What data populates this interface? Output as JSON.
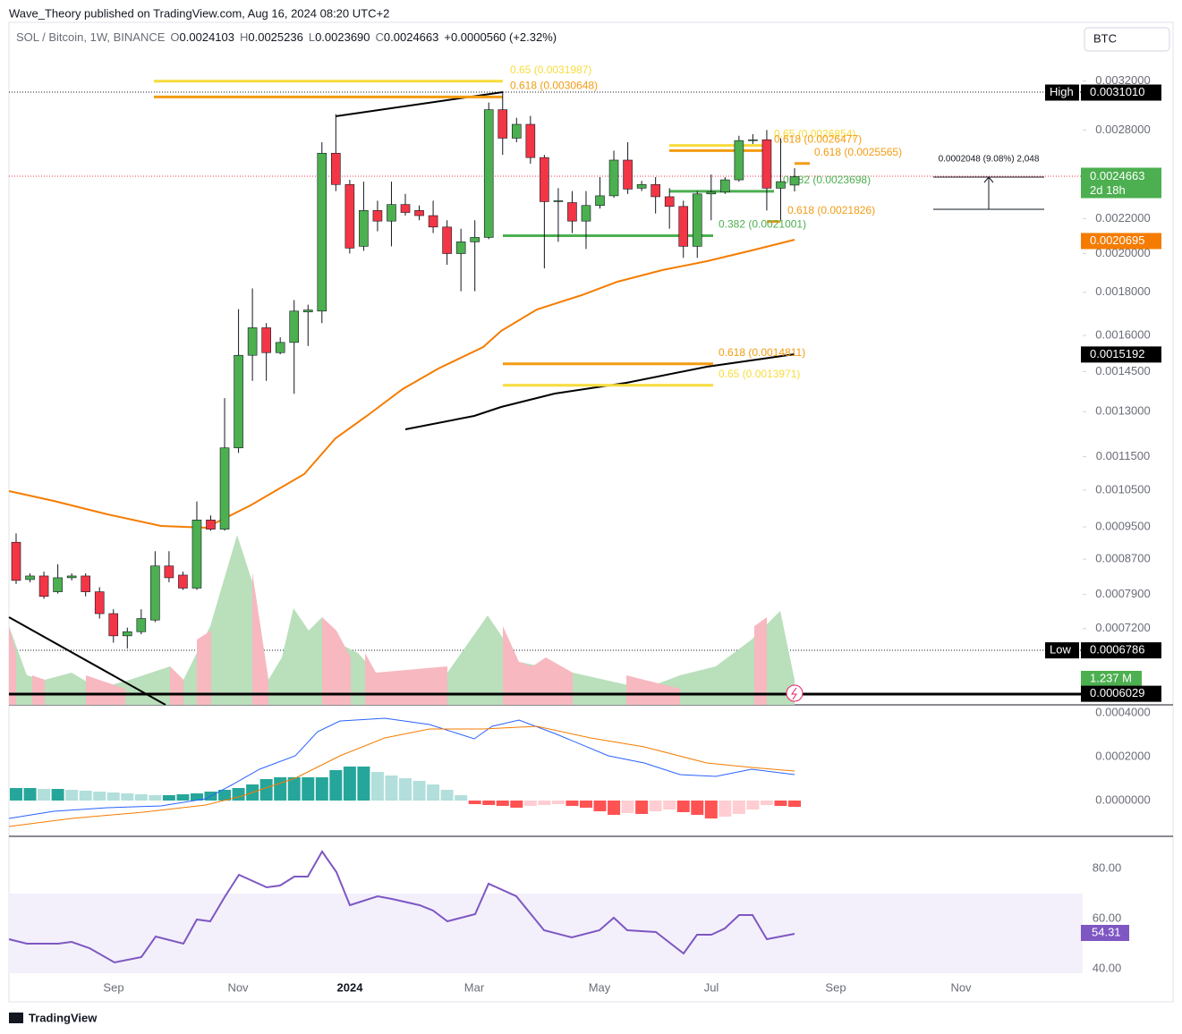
{
  "header": {
    "publisher": "Wave_Theory published on TradingView.com, Aug 16, 2024 08:20 UTC+2",
    "symbol": "SOL / Bitcoin, 1W, BINANCE",
    "ohlc": [
      {
        "key": "O",
        "value": "0.0024103"
      },
      {
        "key": "H",
        "value": "0.0025236"
      },
      {
        "key": "L",
        "value": "0.0023690"
      },
      {
        "key": "C",
        "value": "0.0024663"
      }
    ],
    "change": "+0.0000560 (+2.32%)",
    "currency": "BTC"
  },
  "chart_data": {
    "type": "candlestick",
    "log_scale": true,
    "ylim": [
      0.000585,
      0.00362
    ],
    "yticks": [
      {
        "value": 0.0032,
        "label": "0.0032000"
      },
      {
        "value": 0.0028,
        "label": "0.0028000"
      },
      {
        "value": 0.0022,
        "label": "0.0022000"
      },
      {
        "value": 0.002,
        "label": "0.0020000"
      },
      {
        "value": 0.0018,
        "label": "0.0018000"
      },
      {
        "value": 0.0016,
        "label": "0.0016000"
      },
      {
        "value": 0.00145,
        "label": "0.0014500"
      },
      {
        "value": 0.0013,
        "label": "0.0013000"
      },
      {
        "value": 0.00115,
        "label": "0.0011500"
      },
      {
        "value": 0.00105,
        "label": "0.0010500"
      },
      {
        "value": 0.00095,
        "label": "0.0009500"
      },
      {
        "value": 0.00087,
        "label": "0.0008700"
      },
      {
        "value": 0.00079,
        "label": "0.0007900"
      },
      {
        "value": 0.00072,
        "label": "0.0007200"
      }
    ],
    "up_color": "#4caf50",
    "down_color": "#f23645",
    "candles": [
      [
        0.000911,
        0.000933,
        0.000813,
        0.000821
      ],
      [
        0.000823,
        0.000837,
        0.000817,
        0.000831
      ],
      [
        0.000831,
        0.000841,
        0.000781,
        0.000786
      ],
      [
        0.000796,
        0.000858,
        0.000792,
        0.000827
      ],
      [
        0.000827,
        0.000837,
        0.000821,
        0.000831
      ],
      [
        0.000831,
        0.000837,
        0.000786,
        0.000796
      ],
      [
        0.000796,
        0.000806,
        0.00074,
        0.00075
      ],
      [
        0.00075,
        0.000759,
        0.000693,
        0.000706
      ],
      [
        0.000706,
        0.000722,
        0.000682,
        0.000714
      ],
      [
        0.000714,
        0.000759,
        0.000709,
        0.00074
      ],
      [
        0.000737,
        0.000889,
        0.000733,
        0.000854
      ],
      [
        0.000854,
        0.000889,
        0.000817,
        0.000827
      ],
      [
        0.000833,
        0.000841,
        0.0008,
        0.000804
      ],
      [
        0.000804,
        0.001018,
        0.0008,
        0.000968
      ],
      [
        0.000968,
        0.00098,
        0.00094,
        0.000944
      ],
      [
        0.000944,
        0.001349,
        0.00094,
        0.001178
      ],
      [
        0.001178,
        0.001719,
        0.001162,
        0.001516
      ],
      [
        0.001516,
        0.001819,
        0.001414,
        0.001634
      ],
      [
        0.001634,
        0.001655,
        0.001414,
        0.001527
      ],
      [
        0.001527,
        0.001592,
        0.00152,
        0.00157
      ],
      [
        0.00157,
        0.001762,
        0.001365,
        0.00171
      ],
      [
        0.001706,
        0.00174,
        0.001555,
        0.001715
      ],
      [
        0.00171,
        0.002709,
        0.001655,
        0.002629
      ],
      [
        0.002629,
        0.002924,
        0.002371,
        0.002414
      ],
      [
        0.002414,
        0.002445,
        0.002,
        0.00203
      ],
      [
        0.00204,
        0.002433,
        0.002015,
        0.002249
      ],
      [
        0.002249,
        0.00231,
        0.002125,
        0.002185
      ],
      [
        0.002185,
        0.002433,
        0.00204,
        0.002286
      ],
      [
        0.002286,
        0.002353,
        0.002218,
        0.002237
      ],
      [
        0.002249,
        0.00228,
        0.00219,
        0.002218
      ],
      [
        0.002218,
        0.00231,
        0.002115,
        0.00215
      ],
      [
        0.00215,
        0.00219,
        0.00194,
        0.002
      ],
      [
        0.002,
        0.00214,
        0.001805,
        0.002065
      ],
      [
        0.002065,
        0.00219,
        0.001805,
        0.00209
      ],
      [
        0.00209,
        0.003018,
        0.00208,
        0.00296
      ],
      [
        0.00296,
        0.003105,
        0.002617,
        0.002739
      ],
      [
        0.002739,
        0.002895,
        0.002709,
        0.002844
      ],
      [
        0.002844,
        0.00291,
        0.002555,
        0.002598
      ],
      [
        0.002598,
        0.002617,
        0.001921,
        0.002304
      ],
      [
        0.002304,
        0.00239,
        0.002065,
        0.00231
      ],
      [
        0.002298,
        0.002371,
        0.002115,
        0.002185
      ],
      [
        0.002185,
        0.002371,
        0.002025,
        0.00228
      ],
      [
        0.00228,
        0.002463,
        0.002261,
        0.002341
      ],
      [
        0.002341,
        0.002647,
        0.002329,
        0.00258
      ],
      [
        0.00258,
        0.002709,
        0.002353,
        0.002384
      ],
      [
        0.00239,
        0.002438,
        0.002371,
        0.002414
      ],
      [
        0.002414,
        0.002463,
        0.002231,
        0.002335
      ],
      [
        0.002335,
        0.00239,
        0.00214,
        0.002274
      ],
      [
        0.002274,
        0.00231,
        0.001977,
        0.00204
      ],
      [
        0.00204,
        0.002371,
        0.001977,
        0.002353
      ],
      [
        0.002353,
        0.002481,
        0.00219,
        0.002365
      ],
      [
        0.002365,
        0.002463,
        0.002353,
        0.002445
      ],
      [
        0.002445,
        0.002757,
        0.002433,
        0.002721
      ],
      [
        0.002721,
        0.002769,
        0.002696,
        0.002727
      ],
      [
        0.002727,
        0.0028,
        0.002249,
        0.00239
      ],
      [
        0.00239,
        0.002739,
        0.00219,
        0.002433
      ],
      [
        0.0024103,
        0.0025236,
        0.002369,
        0.0024663
      ]
    ],
    "fibs": [
      {
        "label": "0.65 (0.0031987)",
        "price": 0.0031987,
        "color": "#f7dc3c"
      },
      {
        "label": "0.618 (0.0030648)",
        "price": 0.0030648,
        "color": "#f39c12"
      },
      {
        "label": "0.65 (0.0026854)",
        "price": 0.0026854,
        "color": "#f7dc3c"
      },
      {
        "label": "0.618 (0.0026477)",
        "price": 0.0026477,
        "color": "#f39c12"
      },
      {
        "label": "0.618 (0.0025565)",
        "price": 0.0025565,
        "color": "#f39c12"
      },
      {
        "label": "0.382 (0.0023698)",
        "price": 0.0023698,
        "color": "#4caf50"
      },
      {
        "label": "0.618 (0.0021826)",
        "price": 0.0021826,
        "color": "#f39c12"
      },
      {
        "label": "0.382 (0.0021001)",
        "price": 0.0021001,
        "color": "#4caf50"
      },
      {
        "label": "0.618 (0.0014811)",
        "price": 0.0014811,
        "color": "#f39c12"
      },
      {
        "label": "0.65 (0.0013971)",
        "price": 0.0013971,
        "color": "#f7dc3c"
      }
    ],
    "badges": [
      {
        "tag": "High",
        "value": 0.003101,
        "label": "0.0031010",
        "color": "#000000"
      },
      {
        "value": 0.0024663,
        "label": "0.0024663",
        "sub": "2d 18h",
        "color": "#4caf50"
      },
      {
        "value": 0.0020695,
        "label": "0.0020695",
        "color": "#f57c00"
      },
      {
        "value": 0.0015192,
        "label": "0.0015192",
        "color": "#000000"
      },
      {
        "tag": "Low",
        "value": 0.0006786,
        "label": "0.0006786",
        "color": "#000000"
      },
      {
        "value": 0.0006029,
        "label": "0.0006029",
        "color": "#000000"
      }
    ],
    "volume_label": "1.237 M",
    "measure": "0.0002048 (9.08%) 2,048",
    "macd_ticks": [
      "0.0004000",
      "0.0002000",
      "0.0000000"
    ],
    "rsi_ticks": [
      "80.00",
      "60.00",
      "40.00"
    ],
    "rsi_value": "54.31",
    "time_labels": [
      "Sep",
      "Nov",
      "2024",
      "Mar",
      "May",
      "Jul",
      "Sep",
      "Nov"
    ]
  },
  "footer": {
    "brand": "TradingView"
  }
}
